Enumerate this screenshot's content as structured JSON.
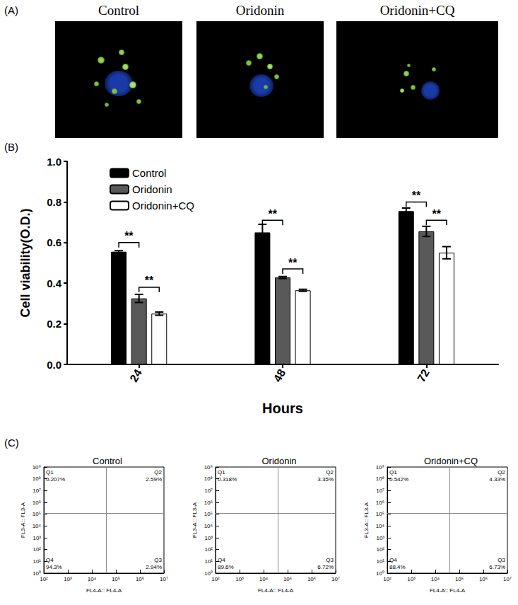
{
  "panel_a": {
    "panel": "(A)",
    "images": [
      {
        "title": "Control"
      },
      {
        "title": "Oridonin"
      },
      {
        "title": "Oridonin+CQ"
      }
    ]
  },
  "chart_data": [
    {
      "type": "bar",
      "panel": "(B)",
      "x_label": "Hours",
      "y_label": "Cell viability(O.D.)",
      "categories": [
        "24",
        "48",
        "72"
      ],
      "series": [
        {
          "name": "Control",
          "color": "#000000",
          "values": [
            0.555,
            0.65,
            0.755
          ],
          "errors": [
            0.005,
            0.04,
            0.015
          ]
        },
        {
          "name": "Oridonin",
          "color": "#595959",
          "values": [
            0.325,
            0.428,
            0.655
          ],
          "errors": [
            0.02,
            0.005,
            0.025
          ]
        },
        {
          "name": "Oridonin+CQ",
          "color": "#ffffff",
          "values": [
            0.25,
            0.365,
            0.55
          ],
          "errors": [
            0.008,
            0.005,
            0.03
          ]
        }
      ],
      "ylim": [
        0,
        1
      ],
      "yticks": [
        {
          "value": 0,
          "label": "0.0"
        },
        {
          "value": 0.2,
          "label": "0.2"
        },
        {
          "value": 0.4,
          "label": "0.4"
        },
        {
          "value": 0.6,
          "label": "0.6"
        },
        {
          "value": 0.8,
          "label": "0.8"
        },
        {
          "value": 1,
          "label": "1.0"
        }
      ],
      "grid": false,
      "legend": "top-left",
      "significance": [
        {
          "category": "24",
          "from": 0,
          "to": 1,
          "y": 0.6,
          "label": "**"
        },
        {
          "category": "24",
          "from": 1,
          "to": 2,
          "y": 0.38,
          "label": "**"
        },
        {
          "category": "48",
          "from": 0,
          "to": 1,
          "y": 0.71,
          "label": "**"
        },
        {
          "category": "48",
          "from": 1,
          "to": 2,
          "y": 0.47,
          "label": "**"
        },
        {
          "category": "72",
          "from": 0,
          "to": 1,
          "y": 0.8,
          "label": "**"
        },
        {
          "category": "72",
          "from": 1,
          "to": 2,
          "y": 0.71,
          "label": "**"
        }
      ]
    },
    {
      "type": "scatter",
      "panel": "(C)",
      "title": "Control",
      "x_label": "FL4-A:: FL4-A",
      "y_label": "FL3-A:: FL3-A",
      "log": true,
      "xlim": [
        100,
        10000000
      ],
      "ylim": [
        1,
        1000000000
      ],
      "xticks": [
        {
          "value": 100,
          "label": "10²"
        },
        {
          "value": 1000,
          "label": "10³"
        },
        {
          "value": 10000,
          "label": "10⁴"
        },
        {
          "value": 100000,
          "label": "10⁵"
        },
        {
          "value": 1000000,
          "label": "10⁶"
        },
        {
          "value": 10000000,
          "label": "10⁷"
        }
      ],
      "yticks": [
        {
          "value": 1,
          "label": "10⁰"
        },
        {
          "value": 10,
          "label": "10¹"
        },
        {
          "value": 100,
          "label": "10²"
        },
        {
          "value": 1000,
          "label": "10³"
        },
        {
          "value": 10000,
          "label": "10⁴"
        },
        {
          "value": 100000,
          "label": "10⁵"
        },
        {
          "value": 1000000,
          "label": "10⁶"
        },
        {
          "value": 10000000,
          "label": "10⁷"
        },
        {
          "value": 100000000,
          "label": "10⁸"
        },
        {
          "value": 1000000000,
          "label": "10⁹"
        }
      ],
      "gates": {
        "x": 40000,
        "y": 130000
      },
      "quadrants": [
        {
          "name": "Q1",
          "value": 0.207,
          "label": "0.207%"
        },
        {
          "name": "Q2",
          "value": 2.59,
          "label": "2.59%"
        },
        {
          "name": "Q3",
          "value": 2.94,
          "label": "2.94%"
        },
        {
          "name": "Q4",
          "value": 94.3,
          "label": "94.3%"
        }
      ]
    },
    {
      "type": "scatter",
      "title": "Oridonin",
      "x_label": "FL4-A:: FL4-A",
      "y_label": "FL3-A:: FL3-A",
      "log": true,
      "xlim": [
        100,
        10000000
      ],
      "ylim": [
        1,
        1000000000
      ],
      "xticks": [
        {
          "value": 100,
          "label": "10²"
        },
        {
          "value": 1000,
          "label": "10³"
        },
        {
          "value": 10000,
          "label": "10⁴"
        },
        {
          "value": 100000,
          "label": "10⁵"
        },
        {
          "value": 1000000,
          "label": "10⁶"
        },
        {
          "value": 10000000,
          "label": "10⁷"
        }
      ],
      "yticks": [
        {
          "value": 1,
          "label": "10⁰"
        },
        {
          "value": 10,
          "label": "10¹"
        },
        {
          "value": 100,
          "label": "10²"
        },
        {
          "value": 1000,
          "label": "10³"
        },
        {
          "value": 10000,
          "label": "10⁴"
        },
        {
          "value": 100000,
          "label": "10⁵"
        },
        {
          "value": 1000000,
          "label": "10⁶"
        },
        {
          "value": 10000000,
          "label": "10⁷"
        },
        {
          "value": 100000000,
          "label": "10⁸"
        },
        {
          "value": 1000000000,
          "label": "10⁹"
        }
      ],
      "gates": {
        "x": 40000,
        "y": 130000
      },
      "quadrants": [
        {
          "name": "Q1",
          "value": 0.318,
          "label": "0.318%"
        },
        {
          "name": "Q2",
          "value": 3.35,
          "label": "3.35%"
        },
        {
          "name": "Q3",
          "value": 6.72,
          "label": "6.72%"
        },
        {
          "name": "Q4",
          "value": 89.6,
          "label": "89.6%"
        }
      ]
    },
    {
      "type": "scatter",
      "title": "Oridonin+CQ",
      "x_label": "FL4-A:: FL4-A",
      "y_label": "FL3-A:: FL3-A",
      "log": true,
      "xlim": [
        100,
        10000000
      ],
      "ylim": [
        1,
        1000000000
      ],
      "xticks": [
        {
          "value": 100,
          "label": "10²"
        },
        {
          "value": 1000,
          "label": "10³"
        },
        {
          "value": 10000,
          "label": "10⁴"
        },
        {
          "value": 100000,
          "label": "10⁵"
        },
        {
          "value": 1000000,
          "label": "10⁶"
        },
        {
          "value": 10000000,
          "label": "10⁷"
        }
      ],
      "yticks": [
        {
          "value": 1,
          "label": "10⁰"
        },
        {
          "value": 10,
          "label": "10¹"
        },
        {
          "value": 100,
          "label": "10²"
        },
        {
          "value": 1000,
          "label": "10³"
        },
        {
          "value": 10000,
          "label": "10⁴"
        },
        {
          "value": 100000,
          "label": "10⁵"
        },
        {
          "value": 1000000,
          "label": "10⁶"
        },
        {
          "value": 10000000,
          "label": "10⁷"
        },
        {
          "value": 100000000,
          "label": "10⁸"
        },
        {
          "value": 1000000000,
          "label": "10⁹"
        }
      ],
      "gates": {
        "x": 40000,
        "y": 130000
      },
      "quadrants": [
        {
          "name": "Q1",
          "value": 0.542,
          "label": "0.542%"
        },
        {
          "name": "Q2",
          "value": 4.33,
          "label": "4.33%"
        },
        {
          "name": "Q3",
          "value": 6.73,
          "label": "6.73%"
        },
        {
          "name": "Q4",
          "value": 88.4,
          "label": "88.4%"
        }
      ]
    }
  ]
}
